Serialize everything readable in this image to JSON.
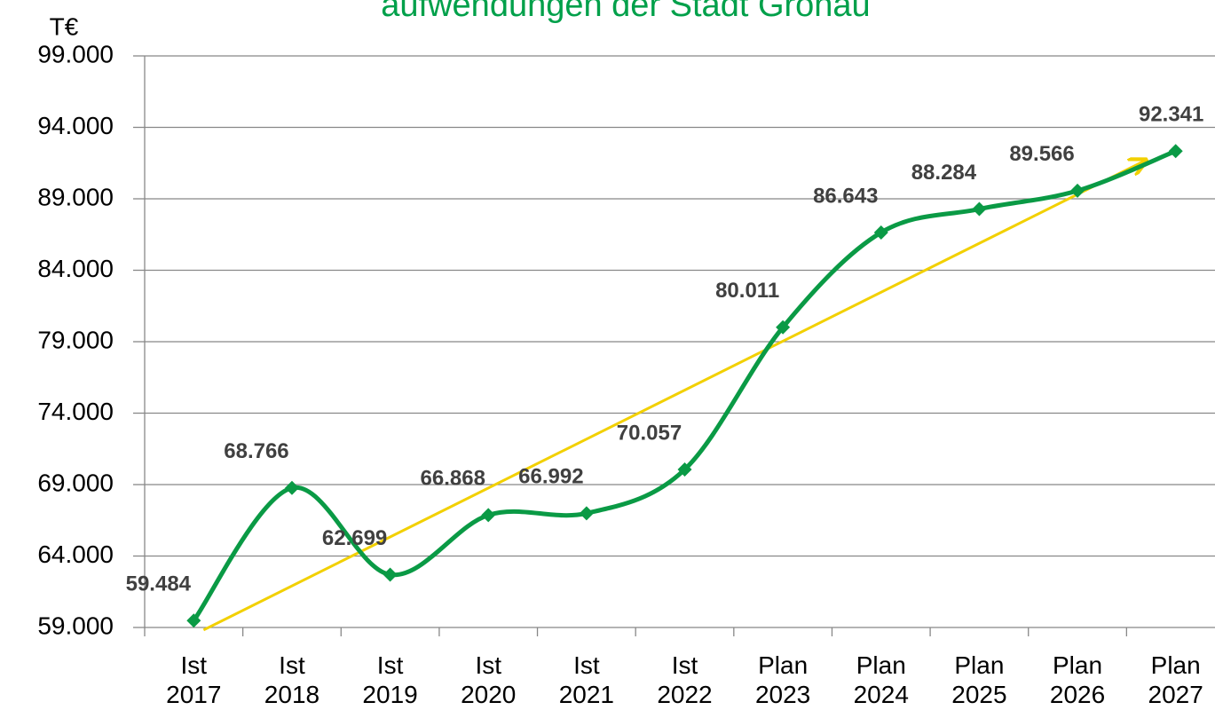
{
  "chart_data": {
    "type": "line",
    "title": "aufwendungen der Stadt Gronau",
    "ylabel": "T€",
    "categories": [
      "Ist 2017",
      "Ist 2018",
      "Ist 2019",
      "Ist 2020",
      "Ist 2021",
      "Ist 2022",
      "Plan 2023",
      "Plan 2024",
      "Plan 2025",
      "Plan 2026",
      "Plan 2027"
    ],
    "series": [
      {
        "color": "#0a9a45",
        "values": [
          59484,
          68766,
          62699,
          66868,
          66992,
          70057,
          80011,
          86643,
          88284,
          89566,
          92341
        ],
        "value_labels": [
          "59.484",
          "68.766",
          "62.699",
          "66.868",
          "66.992",
          "70.057",
          "80.011",
          "86.643",
          "88.284",
          "89.566",
          "92.341"
        ]
      }
    ],
    "trendline": true,
    "trend_color": "#f2d000",
    "ylim": [
      59000,
      99000
    ],
    "yticks": [
      {
        "value": 59000,
        "label": "59.000"
      },
      {
        "value": 64000,
        "label": "64.000"
      },
      {
        "value": 69000,
        "label": "69.000"
      },
      {
        "value": 74000,
        "label": "74.000"
      },
      {
        "value": 79000,
        "label": "79.000"
      },
      {
        "value": 84000,
        "label": "84.000"
      },
      {
        "value": 89000,
        "label": "89.000"
      },
      {
        "value": 94000,
        "label": "94.000"
      },
      {
        "value": 99000,
        "label": "99.000"
      }
    ],
    "grid": true
  }
}
